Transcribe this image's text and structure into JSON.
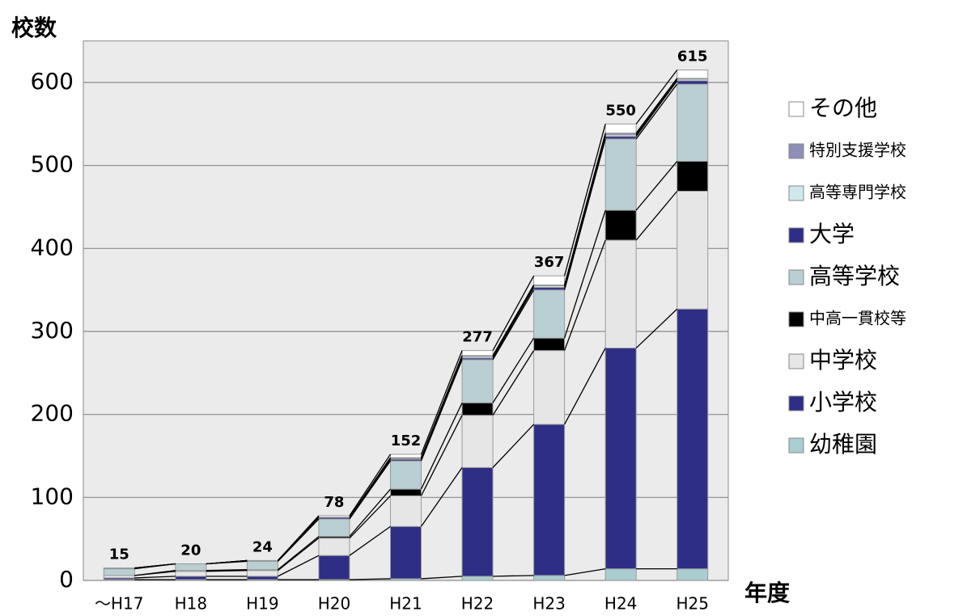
{
  "chart_data": {
    "type": "stacked_bar",
    "y_label": "校数",
    "x_label": "年度",
    "categories": [
      "～H17",
      "H18",
      "H19",
      "H20",
      "H21",
      "H22",
      "H23",
      "H24",
      "H25"
    ],
    "totals": [
      15,
      20,
      24,
      78,
      152,
      277,
      367,
      550,
      615
    ],
    "series": [
      {
        "name": "幼稚園",
        "color": "#a9cdd0",
        "values": [
          1,
          1,
          1,
          1,
          2,
          5,
          6,
          14,
          14
        ]
      },
      {
        "name": "小学校",
        "color": "#2e2e86",
        "values": [
          2,
          4,
          4,
          29,
          63,
          131,
          182,
          266,
          313
        ]
      },
      {
        "name": "中学校",
        "color": "#e6e6e6",
        "values": [
          3,
          6,
          7,
          21,
          37,
          63,
          89,
          130,
          142
        ]
      },
      {
        "name": "中高一貫校等",
        "color": "#000000",
        "values": [
          0,
          1,
          1,
          2,
          8,
          15,
          15,
          36,
          36
        ]
      },
      {
        "name": "高等学校",
        "color": "#b9cfd3",
        "values": [
          8,
          8,
          10,
          21,
          34,
          52,
          58,
          86,
          93
        ]
      },
      {
        "name": "大学",
        "color": "#2e2e86",
        "values": [
          1,
          0,
          1,
          2,
          2,
          2,
          3,
          3,
          4
        ]
      },
      {
        "name": "高等専門学校",
        "color": "#cfe8ec",
        "values": [
          0,
          0,
          0,
          0,
          1,
          2,
          2,
          2,
          2
        ]
      },
      {
        "name": "特別支援学校",
        "color": "#8e8eb8",
        "values": [
          0,
          0,
          0,
          0,
          1,
          1,
          1,
          2,
          1
        ]
      },
      {
        "name": "その他",
        "color": "#ffffff",
        "values": [
          0,
          0,
          0,
          2,
          4,
          6,
          11,
          11,
          10
        ]
      }
    ],
    "ylim": [
      0,
      650
    ],
    "yticks": [
      0,
      100,
      200,
      300,
      400,
      500,
      600
    ],
    "grid": true
  }
}
